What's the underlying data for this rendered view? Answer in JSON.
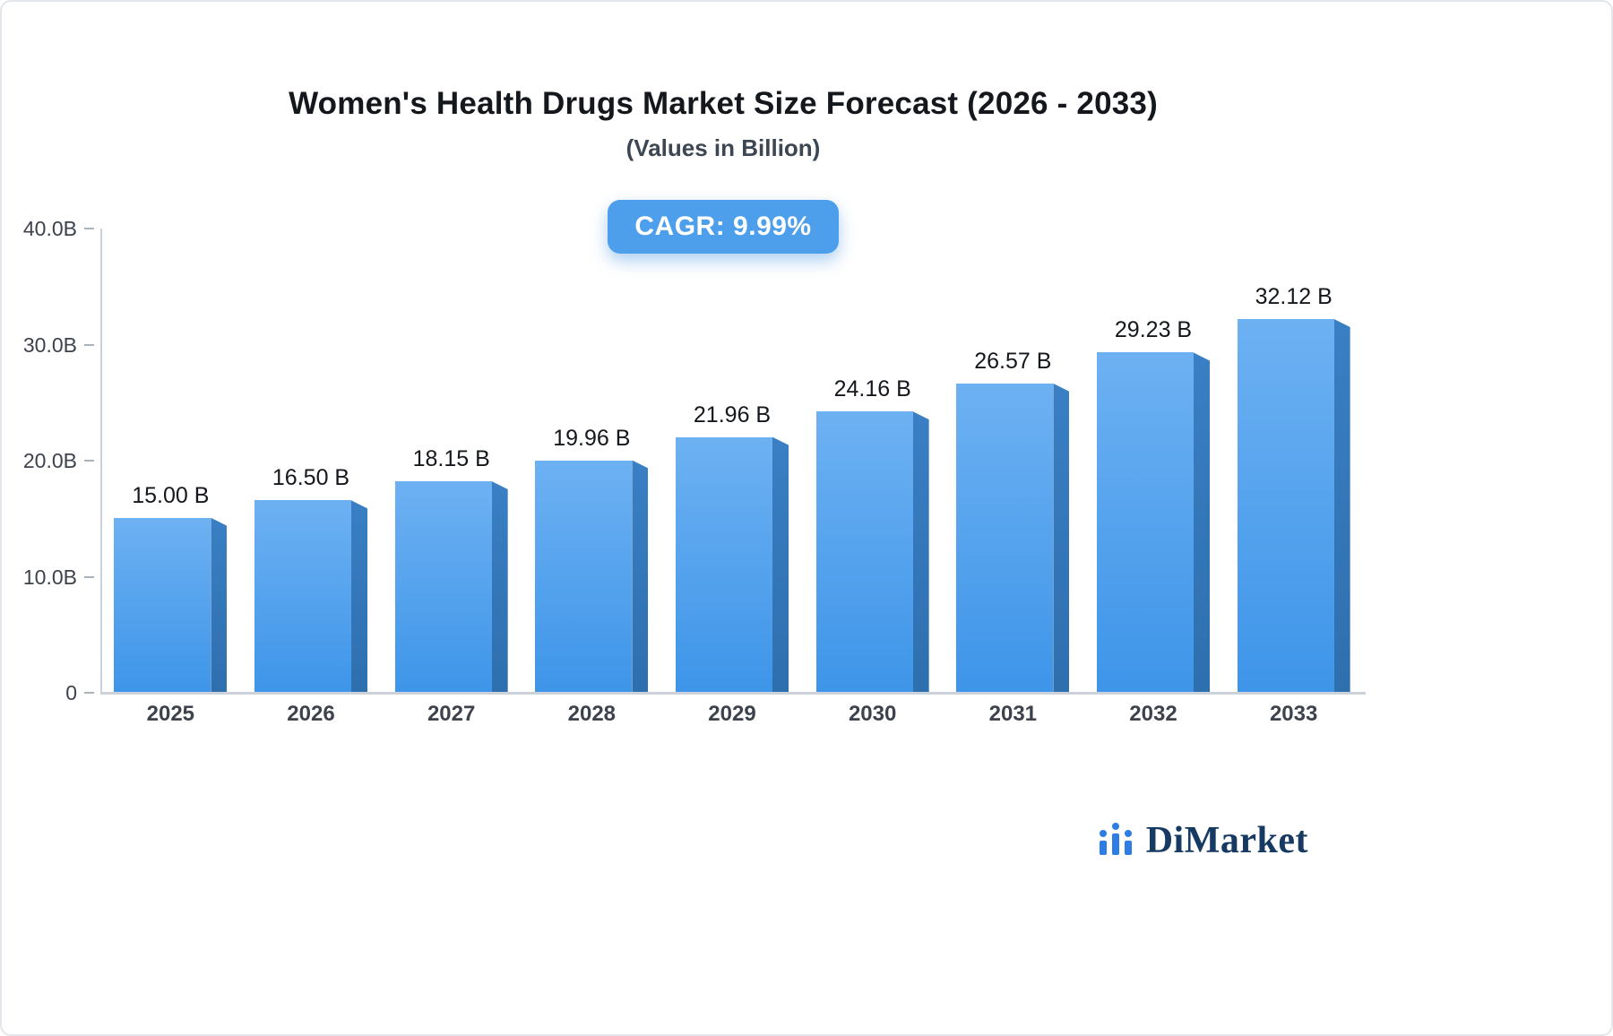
{
  "chart": {
    "title": "Women's Health Drugs Market Size Forecast (2026 - 2033)",
    "subtitle": "(Values in Billion)",
    "cagr_label": "CAGR: 9.99%"
  },
  "chart_data": {
    "type": "bar",
    "categories": [
      "2025",
      "2026",
      "2027",
      "2028",
      "2029",
      "2030",
      "2031",
      "2032",
      "2033"
    ],
    "values": [
      15.0,
      16.5,
      18.15,
      19.96,
      21.96,
      24.16,
      26.57,
      29.23,
      32.12
    ],
    "value_labels": [
      "15.00 B",
      "16.50 B",
      "18.15 B",
      "19.96 B",
      "21.96 B",
      "24.16 B",
      "26.57 B",
      "29.23 B",
      "32.12 B"
    ],
    "title": "Women's Health Drugs Market Size Forecast (2026 - 2033)",
    "subtitle": "(Values in Billion)",
    "xlabel": "",
    "ylabel": "",
    "ylim": [
      0,
      40
    ],
    "yticks": [
      "0",
      "10.0B",
      "20.0B",
      "30.0B",
      "40.0B"
    ],
    "grid": false,
    "legend": false,
    "bar_color_top": "#6db1f2",
    "bar_color_bottom": "#3e95e9",
    "bar_side_color": "#2e6fae",
    "badge_color": "#4d9fec"
  },
  "branding": {
    "logo_text": "DiMarket",
    "logo_icon": "bar-chart-icon",
    "logo_color": "#2e7de5",
    "logo_text_color": "#173a63"
  }
}
